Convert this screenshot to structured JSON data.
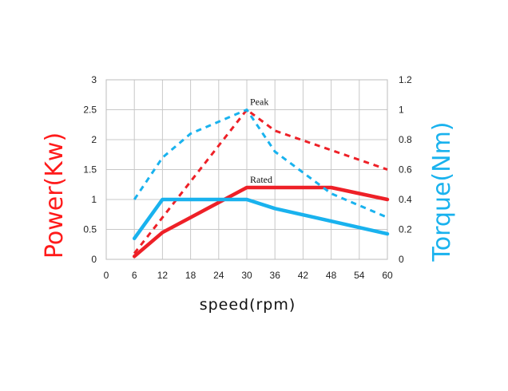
{
  "chart_data": {
    "type": "line",
    "xlabel": "speed(rpm)",
    "ylabel_left": "Power(Kw)",
    "ylabel_right": "Torque(Nm)",
    "x_ticks": [
      0,
      6,
      12,
      18,
      24,
      30,
      36,
      42,
      48,
      54,
      60
    ],
    "y_left_ticks": [
      "0",
      "0.5",
      "1",
      "1.5",
      "2",
      "2.5",
      "3"
    ],
    "y_right_ticks": [
      "0",
      "0.2",
      "0.4",
      "0.6",
      "0.8",
      "1",
      "1.2"
    ],
    "xlim": [
      0,
      60
    ],
    "ylim_left": [
      0,
      3
    ],
    "ylim_right": [
      0,
      1.2
    ],
    "grid": true,
    "annotations": [
      {
        "text": "Peak",
        "x": 30,
        "y": 2.5,
        "axis": "left"
      },
      {
        "text": "Rated",
        "x": 30,
        "y": 1.2,
        "axis": "left"
      }
    ],
    "series": [
      {
        "axis": "left",
        "color": "#ee2027",
        "style": "solid",
        "x": [
          6,
          12,
          30,
          48,
          60
        ],
        "y": [
          0.05,
          0.45,
          1.2,
          1.2,
          1.0
        ]
      },
      {
        "axis": "left",
        "color": "#ee2027",
        "style": "dashed",
        "x": [
          6,
          30,
          36,
          60
        ],
        "y": [
          0.1,
          2.5,
          2.15,
          1.5
        ]
      },
      {
        "axis": "right",
        "color": "#19b2ee",
        "style": "solid",
        "x": [
          6,
          12,
          30,
          36,
          60
        ],
        "y": [
          0.14,
          0.4,
          0.4,
          0.34,
          0.17
        ]
      },
      {
        "axis": "right",
        "color": "#19b2ee",
        "style": "dashed",
        "x": [
          6,
          12,
          18,
          30,
          36,
          48,
          60
        ],
        "y": [
          0.4,
          0.68,
          0.84,
          1.0,
          0.72,
          0.44,
          0.28
        ]
      }
    ]
  }
}
